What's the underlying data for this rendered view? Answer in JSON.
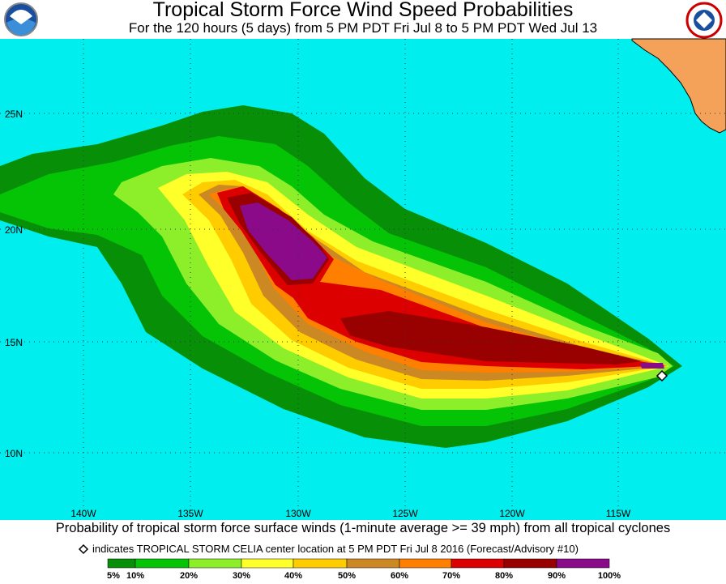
{
  "header": {
    "title": "Tropical Storm Force Wind Speed Probabilities",
    "subtitle": "For the 120 hours (5 days) from 5 PM PDT Fri Jul 8 to 5 PM PDT Wed Jul 13"
  },
  "map": {
    "lat_labels": [
      "25N",
      "20N",
      "15N",
      "10N"
    ],
    "lon_labels": [
      "140W",
      "135W",
      "130W",
      "125W",
      "120W",
      "115W"
    ]
  },
  "footer": {
    "caption": "Probability of tropical storm force surface winds (1-minute average >= 39 mph) from all tropical cyclones",
    "note": "indicates TROPICAL STORM CELIA center location at 5 PM PDT Fri Jul 8 2016 (Forecast/Advisory #10)"
  },
  "legend": {
    "labels": [
      "5%",
      "10%",
      "20%",
      "30%",
      "40%",
      "50%",
      "60%",
      "70%",
      "80%",
      "90%",
      "100%"
    ],
    "colors": [
      "#078f07",
      "#05c305",
      "#8cef2a",
      "#ffff2a",
      "#ffcc00",
      "#cc8822",
      "#ff8000",
      "#dd0000",
      "#990000",
      "#8a0a8a"
    ]
  }
}
